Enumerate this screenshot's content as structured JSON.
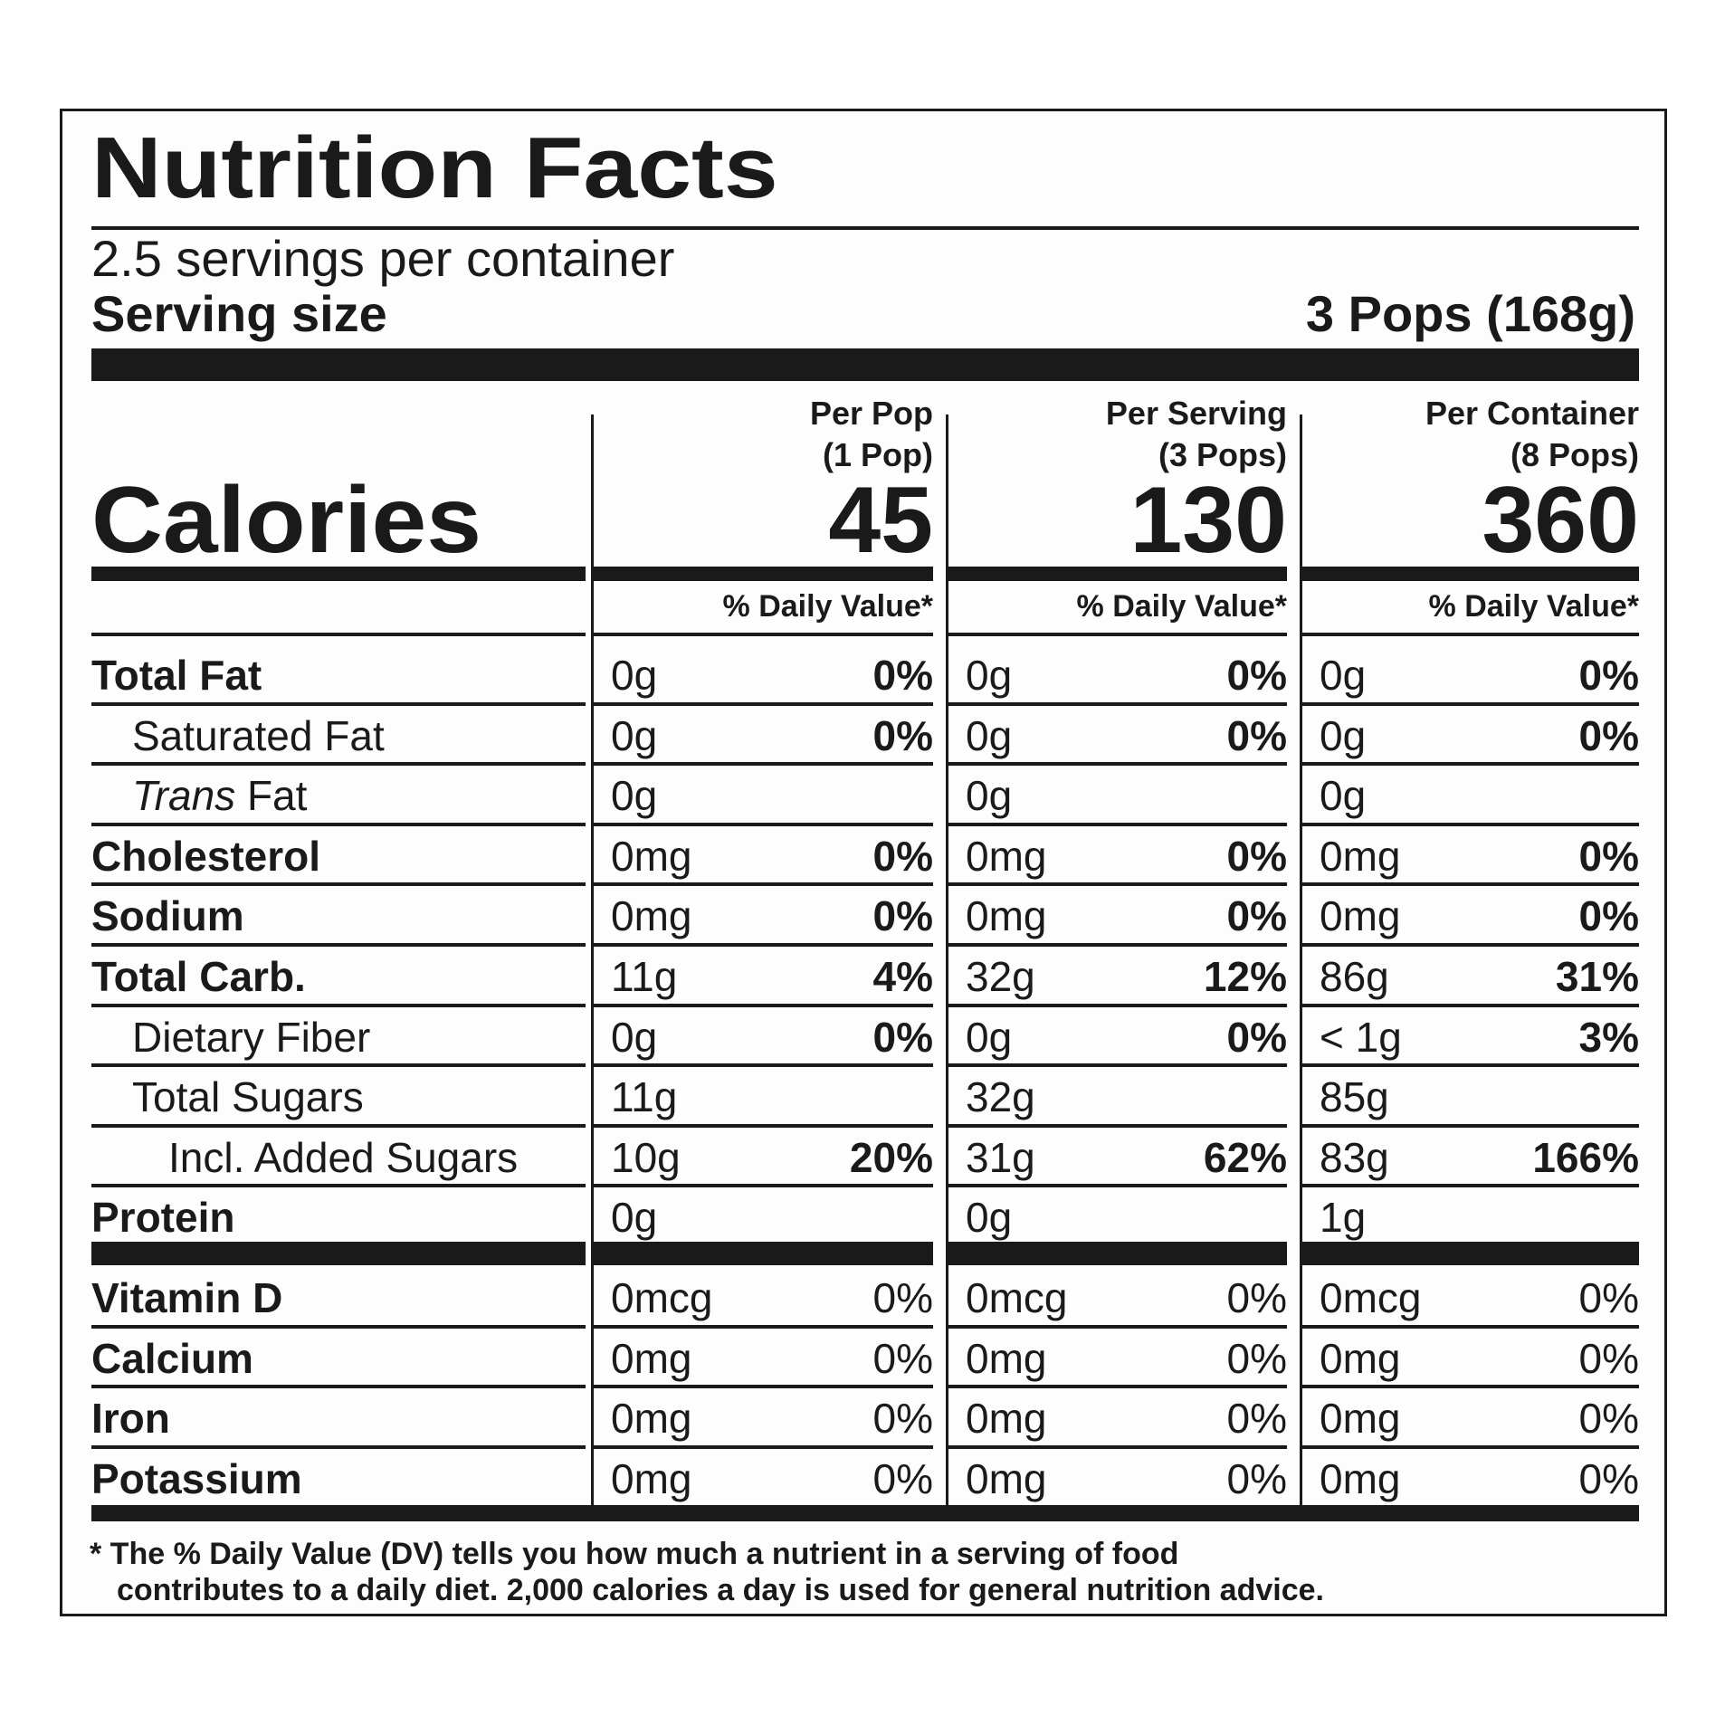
{
  "title": "Nutrition Facts",
  "servings_per_container": "2.5 servings per container",
  "serving_size_label": "Serving size",
  "serving_size_value": "3 Pops (168g)",
  "columns": [
    {
      "head1": "Per Pop",
      "head2": "(1 Pop)",
      "calories": "45",
      "dv_head": "% Daily Value*"
    },
    {
      "head1": "Per Serving",
      "head2": "(3 Pops)",
      "calories": "130",
      "dv_head": "% Daily Value*"
    },
    {
      "head1": "Per Container",
      "head2": "(8 Pops)",
      "calories": "360",
      "dv_head": "% Daily Value*"
    }
  ],
  "calories_label": "Calories",
  "nutrients": [
    {
      "label": "Total Fat",
      "style": "bold",
      "amounts": [
        "0g",
        "0g",
        "0g"
      ],
      "dv": [
        "0%",
        "0%",
        "0%"
      ]
    },
    {
      "label": "Saturated Fat",
      "style": "indent",
      "amounts": [
        "0g",
        "0g",
        "0g"
      ],
      "dv": [
        "0%",
        "0%",
        "0%"
      ]
    },
    {
      "label": "Trans Fat",
      "italic_part": "Trans",
      "rest_part": " Fat",
      "style": "indent-italic",
      "amounts": [
        "0g",
        "0g",
        "0g"
      ],
      "dv": [
        "",
        "",
        ""
      ]
    },
    {
      "label": "Cholesterol",
      "style": "bold",
      "amounts": [
        "0mg",
        "0mg",
        "0mg"
      ],
      "dv": [
        "0%",
        "0%",
        "0%"
      ]
    },
    {
      "label": "Sodium",
      "style": "bold",
      "amounts": [
        "0mg",
        "0mg",
        "0mg"
      ],
      "dv": [
        "0%",
        "0%",
        "0%"
      ]
    },
    {
      "label": "Total Carb.",
      "style": "bold",
      "amounts": [
        "11g",
        "32g",
        "86g"
      ],
      "dv": [
        "4%",
        "12%",
        "31%"
      ]
    },
    {
      "label": "Dietary Fiber",
      "style": "indent",
      "amounts": [
        "0g",
        "0g",
        "< 1g"
      ],
      "dv": [
        "0%",
        "0%",
        "3%"
      ]
    },
    {
      "label": "Total Sugars",
      "style": "indent",
      "amounts": [
        "11g",
        "32g",
        "85g"
      ],
      "dv": [
        "",
        "",
        ""
      ]
    },
    {
      "label": "Incl. Added Sugars",
      "style": "indent2",
      "amounts": [
        "10g",
        "31g",
        "83g"
      ],
      "dv": [
        "20%",
        "62%",
        "166%"
      ]
    },
    {
      "label": "Protein",
      "style": "bold",
      "amounts": [
        "0g",
        "0g",
        "1g"
      ],
      "dv": [
        "",
        "",
        ""
      ]
    }
  ],
  "vitamins": [
    {
      "label": "Vitamin D",
      "amounts": [
        "0mcg",
        "0mcg",
        "0mcg"
      ],
      "dv": [
        "0%",
        "0%",
        "0%"
      ]
    },
    {
      "label": "Calcium",
      "amounts": [
        "0mg",
        "0mg",
        "0mg"
      ],
      "dv": [
        "0%",
        "0%",
        "0%"
      ]
    },
    {
      "label": "Iron",
      "amounts": [
        "0mg",
        "0mg",
        "0mg"
      ],
      "dv": [
        "0%",
        "0%",
        "0%"
      ]
    },
    {
      "label": "Potassium",
      "amounts": [
        "0mg",
        "0mg",
        "0mg"
      ],
      "dv": [
        "0%",
        "0%",
        "0%"
      ]
    }
  ],
  "footnote_line1": "* The % Daily Value (DV) tells you how much a nutrient in a serving of food",
  "footnote_line2": "contributes to a daily diet. 2,000 calories a day is used for general nutrition advice."
}
